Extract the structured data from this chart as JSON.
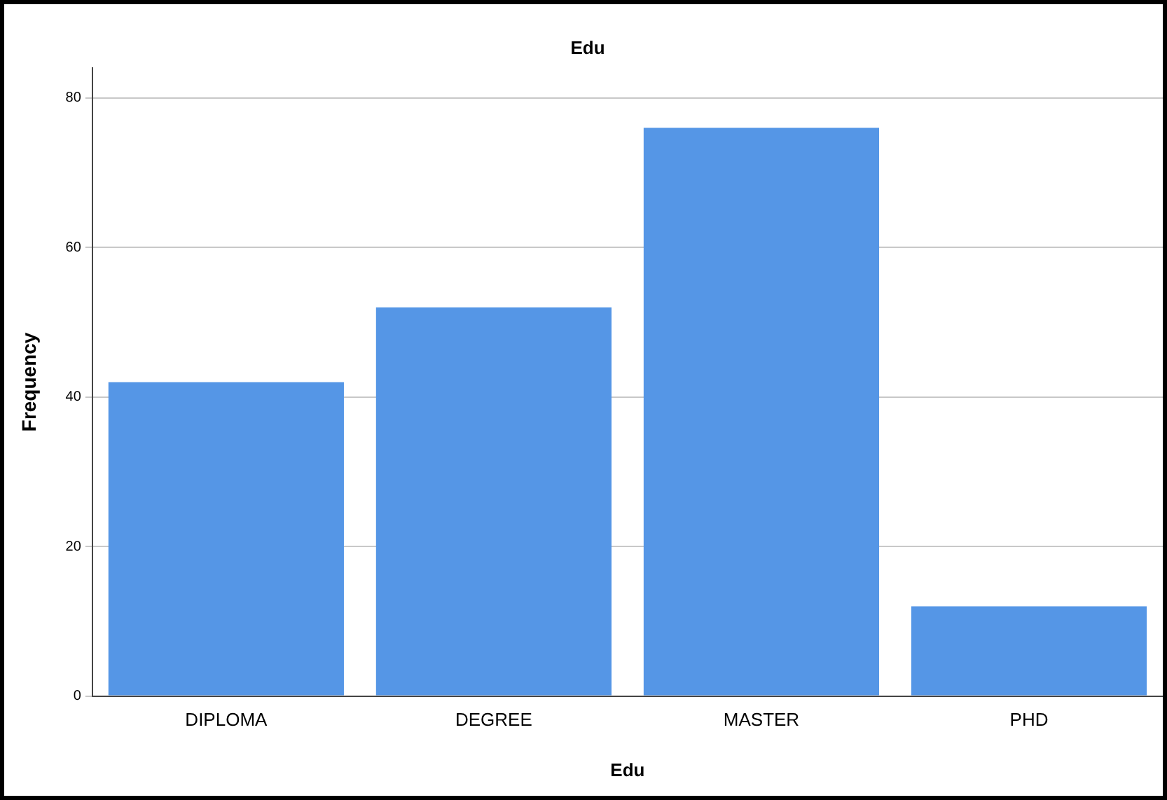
{
  "chart_data": {
    "type": "bar",
    "title": "Edu",
    "xlabel": "Edu",
    "ylabel": "Frequency",
    "categories": [
      "DIPLOMA",
      "DEGREE",
      "MASTER",
      "PHD"
    ],
    "values": [
      42,
      52,
      76,
      12
    ],
    "color": "#5596e6",
    "ylim": [
      0,
      84
    ],
    "yticks": [
      0,
      20,
      40,
      60,
      80
    ],
    "grid": "y"
  }
}
